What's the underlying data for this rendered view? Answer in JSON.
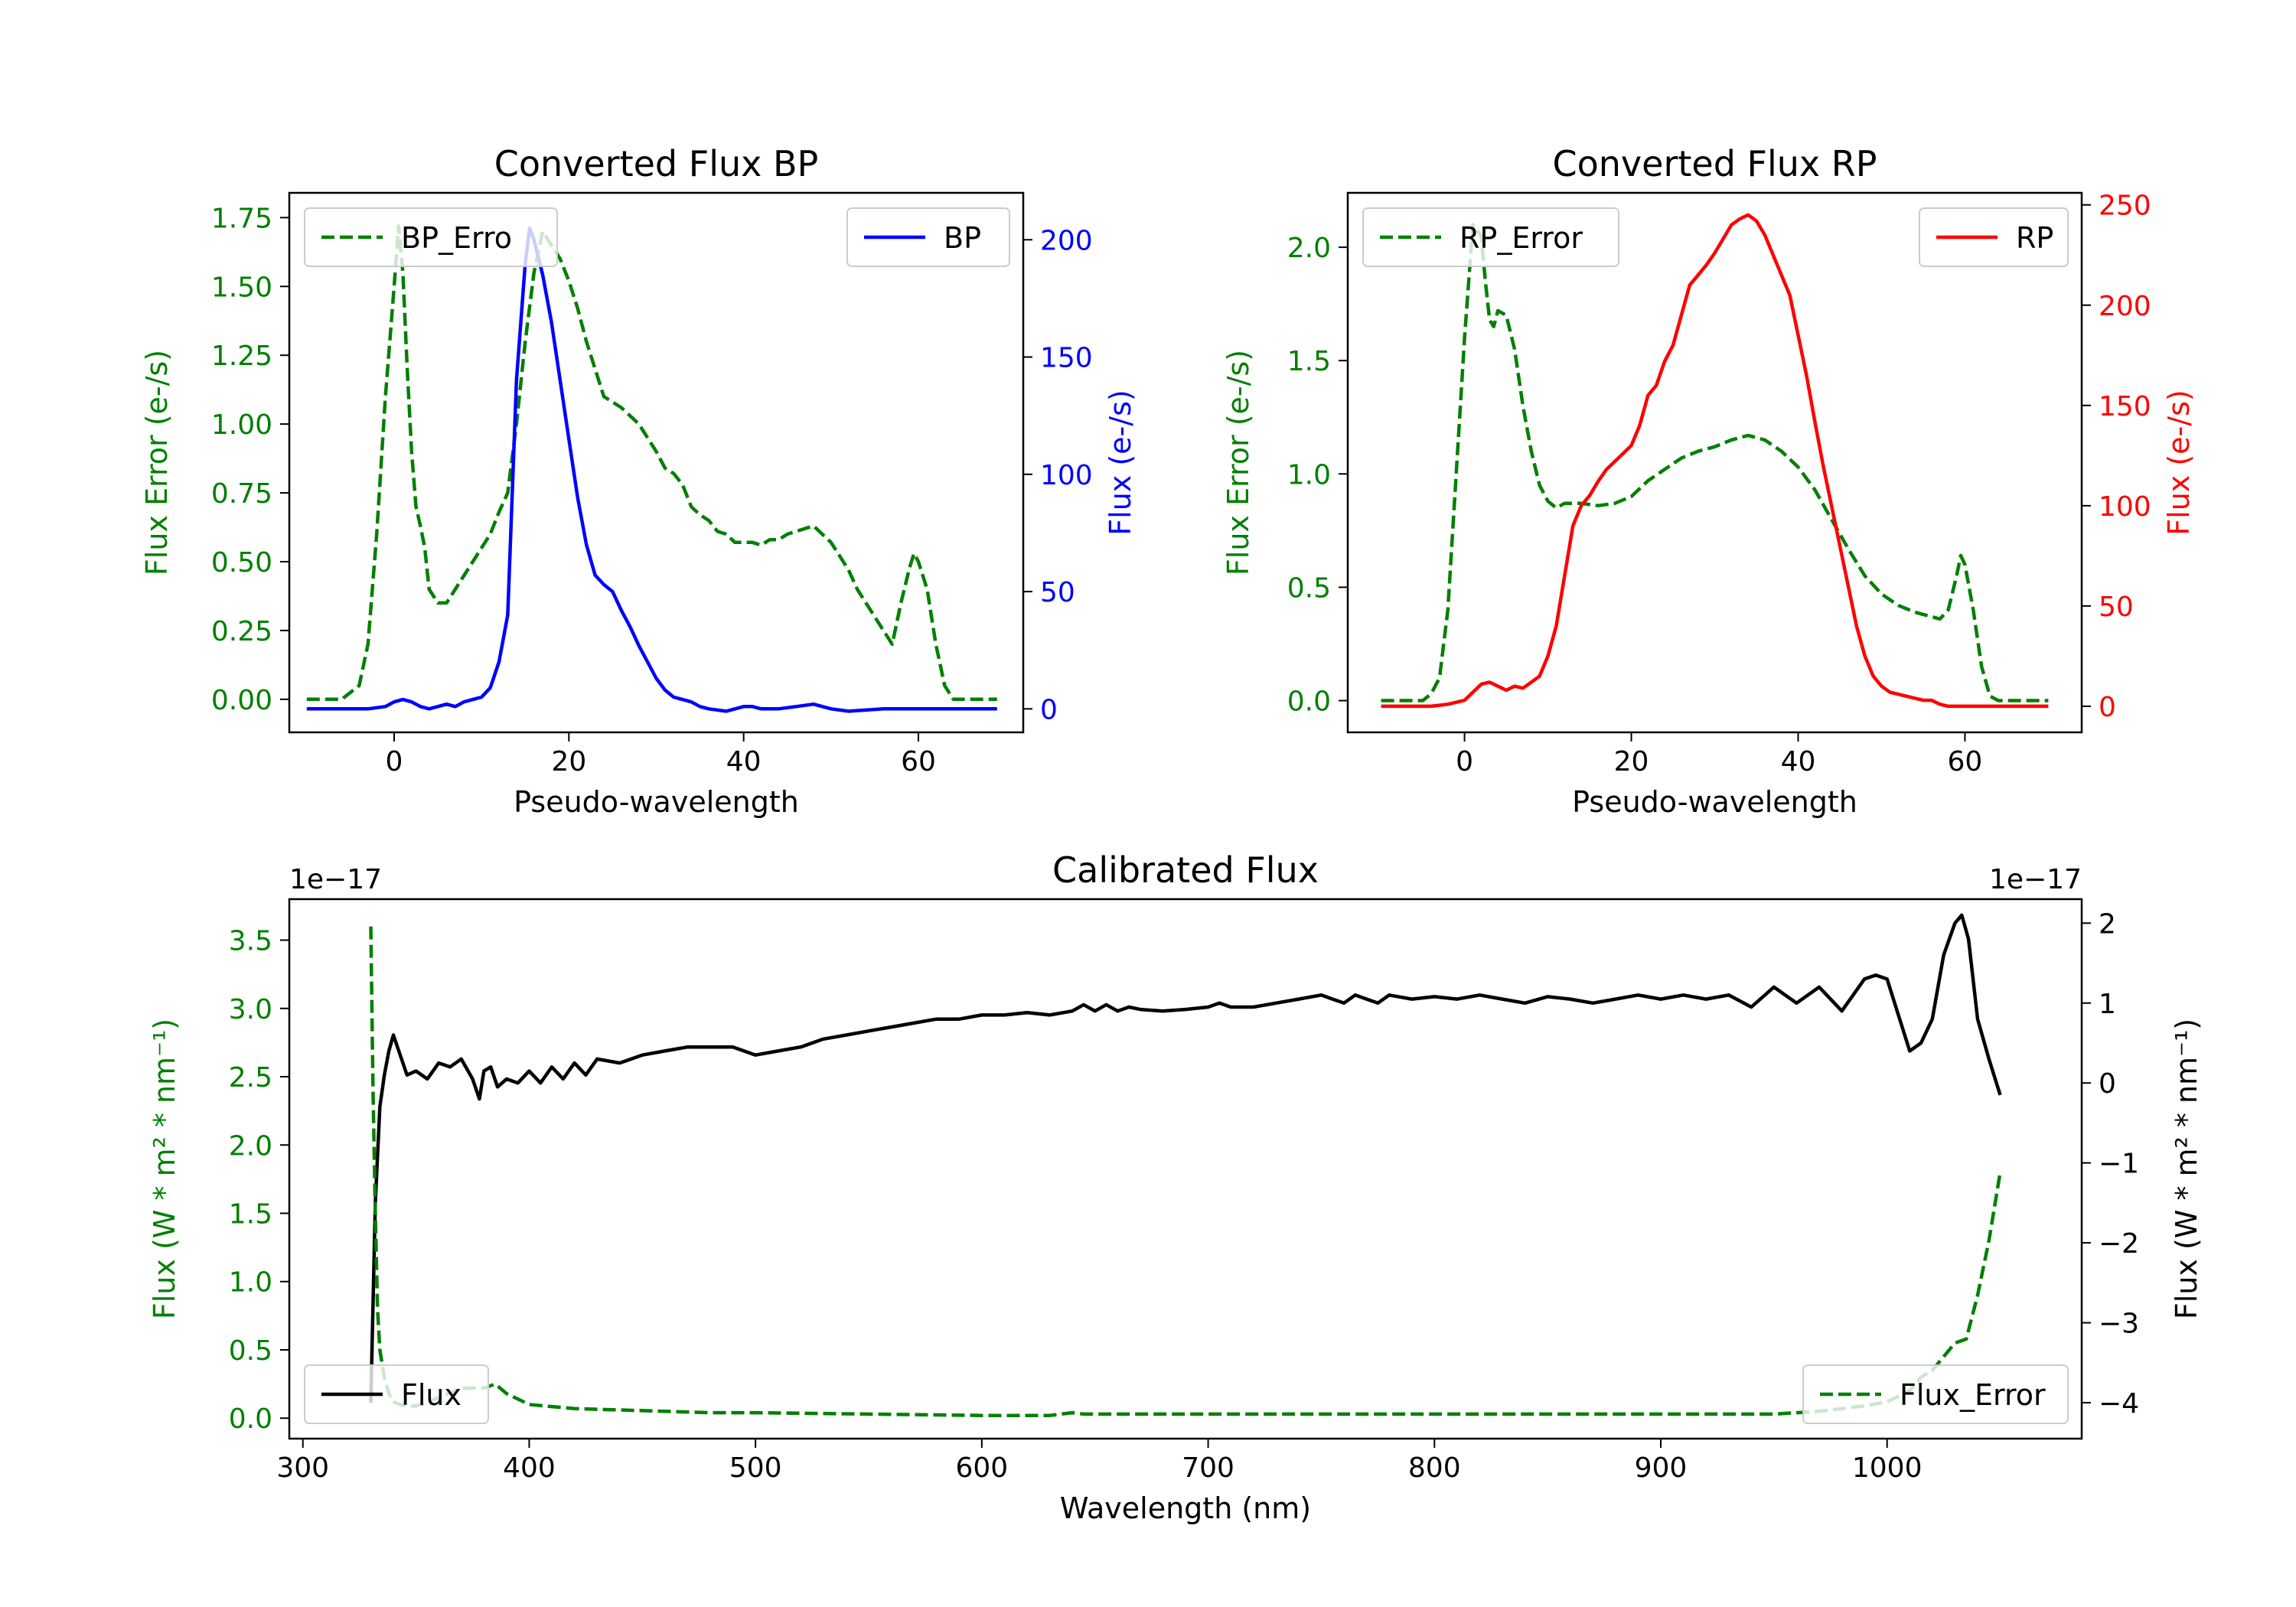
{
  "colors": {
    "error": "#008000",
    "bp": "#0000ff",
    "rp": "#ff0000",
    "flux": "#000000",
    "axes": "#000000"
  },
  "chart_data": [
    {
      "type": "line",
      "title": "Converted Flux BP",
      "xlabel": "Pseudo-wavelength",
      "ylabel_left": "Flux Error (e-/s)",
      "ylabel_right": "Flux (e-/s)",
      "xlim": [
        -12,
        72
      ],
      "ylim_left": [
        -0.12,
        1.84
      ],
      "ylim_right": [
        -10,
        220
      ],
      "x_ticks": [
        0,
        20,
        40,
        60
      ],
      "x_tick_labels": [
        "0",
        "20",
        "40",
        "60"
      ],
      "y_left_ticks": [
        0.0,
        0.25,
        0.5,
        0.75,
        1.0,
        1.25,
        1.5,
        1.75
      ],
      "y_left_tick_labels": [
        "0.00",
        "0.25",
        "0.50",
        "0.75",
        "1.00",
        "1.25",
        "1.50",
        "1.75"
      ],
      "y_right_ticks": [
        0,
        50,
        100,
        150,
        200
      ],
      "y_right_tick_labels": [
        "0",
        "50",
        "100",
        "150",
        "200"
      ],
      "legend_left": {
        "label": "BP_Erro",
        "location": "upper-left"
      },
      "legend_right": {
        "label": "BP",
        "location": "upper-right"
      },
      "series": [
        {
          "name": "BP_Error",
          "axis": "left",
          "style": "dashed",
          "color": "error",
          "x": [
            -10,
            -6,
            -4,
            -3,
            -2,
            -1,
            0,
            0.5,
            1,
            1.5,
            2,
            2.5,
            3,
            3.5,
            4,
            5,
            6,
            7,
            8,
            9,
            10,
            11,
            12,
            13,
            14,
            15,
            16,
            17,
            18,
            19,
            20,
            21,
            22,
            23,
            24,
            25,
            26,
            27,
            28,
            30,
            31,
            32,
            33,
            34,
            35,
            36,
            37,
            38,
            39,
            40,
            41,
            42,
            43,
            44,
            45,
            46,
            47,
            48,
            49,
            50,
            51,
            52,
            53,
            54,
            55,
            56,
            57,
            58,
            59,
            59.5,
            60,
            61,
            62,
            63,
            64,
            65,
            67,
            69
          ],
          "y": [
            0.0,
            0.0,
            0.05,
            0.2,
            0.6,
            1.1,
            1.5,
            1.72,
            1.55,
            1.2,
            0.9,
            0.7,
            0.63,
            0.55,
            0.4,
            0.35,
            0.35,
            0.4,
            0.45,
            0.5,
            0.55,
            0.6,
            0.68,
            0.75,
            1.0,
            1.3,
            1.55,
            1.7,
            1.65,
            1.6,
            1.52,
            1.42,
            1.3,
            1.2,
            1.1,
            1.08,
            1.06,
            1.03,
            1.0,
            0.9,
            0.84,
            0.82,
            0.78,
            0.7,
            0.67,
            0.65,
            0.61,
            0.6,
            0.57,
            0.57,
            0.57,
            0.56,
            0.58,
            0.58,
            0.6,
            0.61,
            0.62,
            0.63,
            0.6,
            0.57,
            0.52,
            0.47,
            0.4,
            0.35,
            0.3,
            0.25,
            0.2,
            0.35,
            0.48,
            0.53,
            0.5,
            0.4,
            0.2,
            0.05,
            0.0,
            0.0,
            0.0,
            0.0
          ]
        },
        {
          "name": "BP",
          "axis": "right",
          "style": "solid",
          "color": "bp",
          "x": [
            -10,
            -6,
            -3,
            -1,
            0,
            1,
            2,
            3,
            4,
            5,
            6,
            7,
            8,
            9,
            10,
            11,
            12,
            13,
            13.5,
            14,
            15,
            15.5,
            16,
            17,
            18,
            19,
            20,
            21,
            22,
            23,
            24,
            25,
            26,
            27,
            28,
            29,
            30,
            31,
            32,
            33,
            34,
            35,
            36,
            38,
            40,
            41,
            42,
            44,
            46,
            48,
            50,
            52,
            56,
            60,
            65,
            69
          ],
          "y": [
            0,
            0,
            0,
            1,
            3,
            4,
            3,
            1,
            0,
            1,
            2,
            1,
            3,
            4,
            5,
            9,
            20,
            40,
            90,
            140,
            190,
            205,
            200,
            185,
            165,
            140,
            115,
            90,
            70,
            57,
            53,
            50,
            42,
            35,
            27,
            20,
            13,
            8,
            5,
            4,
            3,
            1,
            0,
            -1,
            1,
            1,
            0,
            0,
            1,
            2,
            0,
            -1,
            0,
            0,
            0,
            0
          ]
        }
      ]
    },
    {
      "type": "line",
      "title": "Converted Flux RP",
      "xlabel": "Pseudo-wavelength",
      "ylabel_left": "Flux Error (e-/s)",
      "ylabel_right": "Flux (e-/s)",
      "xlim": [
        -14,
        74
      ],
      "ylim_left": [
        -0.14,
        2.24
      ],
      "ylim_right": [
        -13,
        256
      ],
      "x_ticks": [
        0,
        20,
        40,
        60
      ],
      "x_tick_labels": [
        "0",
        "20",
        "40",
        "60"
      ],
      "y_left_ticks": [
        0.0,
        0.5,
        1.0,
        1.5,
        2.0
      ],
      "y_left_tick_labels": [
        "0.0",
        "0.5",
        "1.0",
        "1.5",
        "2.0"
      ],
      "y_right_ticks": [
        0,
        50,
        100,
        150,
        200,
        250
      ],
      "y_right_tick_labels": [
        "0",
        "50",
        "100",
        "150",
        "200",
        "250"
      ],
      "legend_left": {
        "label": "RP_Error",
        "location": "upper-left"
      },
      "legend_right": {
        "label": "RP",
        "location": "upper-right"
      },
      "series": [
        {
          "name": "RP_Error",
          "axis": "left",
          "style": "dashed",
          "color": "error",
          "x": [
            -10,
            -5,
            -4,
            -3,
            -2,
            -1,
            0,
            1,
            2,
            2.5,
            3,
            3.5,
            4,
            5,
            6,
            7,
            8,
            9,
            10,
            11,
            12,
            14,
            16,
            18,
            20,
            22,
            24,
            26,
            28,
            30,
            32,
            34,
            36,
            38,
            40,
            42,
            44,
            46,
            48,
            50,
            52,
            54,
            56,
            57,
            58,
            59,
            59.5,
            60,
            61,
            62,
            63,
            64,
            66,
            70
          ],
          "y": [
            0.0,
            0.0,
            0.03,
            0.1,
            0.4,
            1.0,
            1.6,
            2.1,
            2.05,
            1.85,
            1.68,
            1.65,
            1.72,
            1.7,
            1.55,
            1.3,
            1.1,
            0.95,
            0.88,
            0.85,
            0.87,
            0.87,
            0.86,
            0.87,
            0.9,
            0.97,
            1.02,
            1.07,
            1.1,
            1.12,
            1.15,
            1.17,
            1.15,
            1.1,
            1.03,
            0.93,
            0.8,
            0.67,
            0.55,
            0.47,
            0.42,
            0.39,
            0.37,
            0.36,
            0.4,
            0.55,
            0.64,
            0.6,
            0.4,
            0.15,
            0.02,
            0.0,
            0.0,
            0.0
          ]
        },
        {
          "name": "RP",
          "axis": "right",
          "style": "solid",
          "color": "rp",
          "x": [
            -10,
            -4,
            -2,
            0,
            1,
            2,
            3,
            4,
            5,
            6,
            7,
            8,
            9,
            10,
            11,
            12,
            13,
            14,
            15,
            16,
            17,
            18,
            19,
            20,
            21,
            22,
            23,
            24,
            25,
            26,
            27,
            28,
            29,
            30,
            31,
            32,
            33,
            34,
            35,
            36,
            37,
            38,
            39,
            40,
            41,
            42,
            43,
            44,
            45,
            46,
            47,
            48,
            49,
            50,
            51,
            52,
            53,
            54,
            55,
            56,
            57,
            58,
            60,
            62,
            66,
            70
          ],
          "y": [
            0,
            0,
            1,
            3,
            7,
            11,
            12,
            10,
            8,
            10,
            9,
            12,
            15,
            25,
            40,
            65,
            90,
            100,
            105,
            112,
            118,
            122,
            126,
            130,
            140,
            155,
            160,
            172,
            180,
            195,
            210,
            215,
            220,
            226,
            233,
            240,
            243,
            245,
            242,
            235,
            225,
            215,
            205,
            185,
            165,
            142,
            120,
            100,
            80,
            60,
            40,
            25,
            15,
            10,
            7,
            6,
            5,
            4,
            3,
            3,
            1,
            0,
            0,
            0,
            0,
            0
          ]
        }
      ]
    },
    {
      "type": "line",
      "title": "Calibrated Flux",
      "xlabel": "Wavelength (nm)",
      "ylabel_left": "Flux (W * m² * nm⁻¹)",
      "ylabel_right": "Flux (W * m² * nm⁻¹)",
      "offset_left": "1e−17",
      "offset_right": "1e−17",
      "xlim": [
        294,
        1086
      ],
      "ylim_left": [
        -0.15,
        3.8
      ],
      "ylim_right": [
        -4.45,
        2.3
      ],
      "x_ticks": [
        300,
        400,
        500,
        600,
        700,
        800,
        900,
        1000
      ],
      "x_tick_labels": [
        "300",
        "400",
        "500",
        "600",
        "700",
        "800",
        "900",
        "1000"
      ],
      "y_left_ticks": [
        0.0,
        0.5,
        1.0,
        1.5,
        2.0,
        2.5,
        3.0,
        3.5
      ],
      "y_left_tick_labels": [
        "0.0",
        "0.5",
        "1.0",
        "1.5",
        "2.0",
        "2.5",
        "3.0",
        "3.5"
      ],
      "y_right_ticks": [
        -4,
        -3,
        -2,
        -1,
        0,
        1,
        2
      ],
      "y_right_tick_labels": [
        "−4",
        "−3",
        "−2",
        "−1",
        "0",
        "1",
        "2"
      ],
      "legend_left": {
        "label": "Flux",
        "location": "lower-left"
      },
      "legend_right": {
        "label": "Flux_Error",
        "location": "lower-right"
      },
      "series": [
        {
          "name": "Flux",
          "axis": "right",
          "style": "solid",
          "color": "flux",
          "x": [
            330,
            332,
            334,
            336,
            338,
            340,
            343,
            346,
            350,
            355,
            360,
            365,
            370,
            375,
            378,
            380,
            383,
            386,
            390,
            395,
            400,
            405,
            410,
            415,
            420,
            425,
            430,
            440,
            450,
            460,
            470,
            480,
            490,
            500,
            510,
            520,
            530,
            540,
            550,
            560,
            570,
            580,
            590,
            600,
            610,
            620,
            630,
            640,
            645,
            650,
            655,
            660,
            665,
            670,
            680,
            690,
            700,
            705,
            710,
            720,
            730,
            740,
            750,
            755,
            760,
            765,
            770,
            775,
            780,
            790,
            800,
            810,
            820,
            830,
            840,
            850,
            860,
            870,
            880,
            890,
            900,
            910,
            920,
            930,
            940,
            950,
            960,
            970,
            980,
            990,
            995,
            1000,
            1010,
            1015,
            1020,
            1025,
            1030,
            1033,
            1036,
            1040,
            1045,
            1050
          ],
          "y": [
            -4.0,
            -1.5,
            -0.3,
            0.1,
            0.4,
            0.6,
            0.35,
            0.1,
            0.15,
            0.05,
            0.25,
            0.2,
            0.3,
            0.05,
            -0.2,
            0.15,
            0.2,
            -0.05,
            0.05,
            0.0,
            0.15,
            0.0,
            0.2,
            0.05,
            0.25,
            0.1,
            0.3,
            0.25,
            0.35,
            0.4,
            0.45,
            0.45,
            0.45,
            0.35,
            0.4,
            0.45,
            0.55,
            0.6,
            0.65,
            0.7,
            0.75,
            0.8,
            0.8,
            0.85,
            0.85,
            0.88,
            0.85,
            0.9,
            0.98,
            0.9,
            0.98,
            0.9,
            0.95,
            0.92,
            0.9,
            0.92,
            0.95,
            1.0,
            0.95,
            0.95,
            1.0,
            1.05,
            1.1,
            1.05,
            1.0,
            1.1,
            1.05,
            1.0,
            1.1,
            1.05,
            1.08,
            1.05,
            1.1,
            1.05,
            1.0,
            1.08,
            1.05,
            1.0,
            1.05,
            1.1,
            1.05,
            1.1,
            1.05,
            1.1,
            0.95,
            1.2,
            1.0,
            1.2,
            0.9,
            1.3,
            1.35,
            1.3,
            0.4,
            0.5,
            0.8,
            1.6,
            2.0,
            2.1,
            1.8,
            0.8,
            0.3,
            -0.15
          ]
        },
        {
          "name": "Flux_Error",
          "axis": "left",
          "style": "dashed",
          "color": "error",
          "x": [
            330,
            331,
            332,
            333,
            334,
            336,
            338,
            340,
            343,
            346,
            350,
            355,
            360,
            370,
            380,
            385,
            390,
            400,
            420,
            440,
            460,
            480,
            500,
            550,
            600,
            630,
            640,
            645,
            650,
            700,
            750,
            800,
            850,
            900,
            950,
            960,
            970,
            980,
            990,
            1000,
            1010,
            1015,
            1020,
            1025,
            1030,
            1035,
            1040,
            1045,
            1050
          ],
          "y": [
            3.6,
            2.4,
            1.5,
            0.8,
            0.5,
            0.3,
            0.18,
            0.12,
            0.1,
            0.09,
            0.09,
            0.12,
            0.15,
            0.22,
            0.22,
            0.25,
            0.18,
            0.1,
            0.07,
            0.06,
            0.05,
            0.04,
            0.04,
            0.03,
            0.02,
            0.02,
            0.04,
            0.03,
            0.03,
            0.03,
            0.03,
            0.03,
            0.03,
            0.03,
            0.03,
            0.04,
            0.05,
            0.07,
            0.09,
            0.12,
            0.2,
            0.3,
            0.35,
            0.45,
            0.55,
            0.58,
            0.9,
            1.3,
            1.8
          ]
        }
      ]
    }
  ]
}
